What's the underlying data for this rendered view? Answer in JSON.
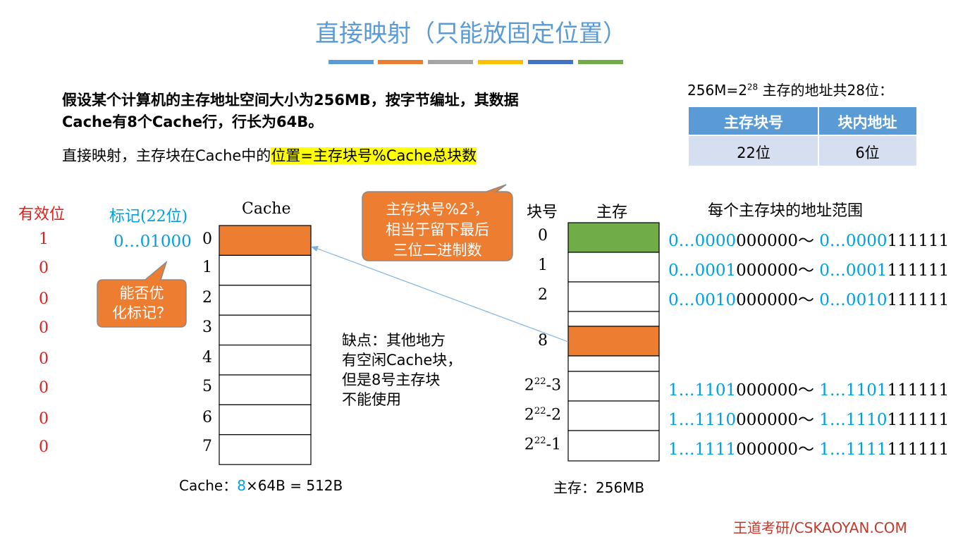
{
  "title": "直接映射（只能放固定位置）",
  "intro": {
    "before": "假设某个计算机的主存地址空间大小为256MB，按",
    "bold": "字节",
    "after": "编址，其数据Cache有8个Cache行，行长为64B。"
  },
  "rule": {
    "text": "直接映射，主存块在Cache中的",
    "highlight": "位置=主存块号%Cache总块数"
  },
  "address_note": {
    "base": "256M=2",
    "exp": "28",
    "after": " 主存的地址共28位："
  },
  "table": {
    "header": [
      "主存块号",
      "块内地址"
    ],
    "rows": [
      [
        "22位",
        "6位"
      ]
    ]
  },
  "labels": {
    "valid": "有效位",
    "tag": "标记(22位)",
    "cache": "Cache",
    "block_no": "块号",
    "memory": "主存",
    "range": "每个主存块的地址范围"
  },
  "valid_bits": [
    1,
    0,
    0,
    0,
    0,
    0,
    0,
    0
  ],
  "tag_value": "0…01000",
  "cache_rows": [
    0,
    1,
    2,
    3,
    4,
    5,
    6,
    7
  ],
  "tag_callout": [
    "能否优",
    "化标记？"
  ],
  "mod_callout": {
    "line1": {
      "base": "主存块号%2",
      "exp": "3",
      "after": "，"
    },
    "line2": "相当于留下最后",
    "line3": "三位二进制数"
  },
  "drawback": [
    "缺点：其他地方",
    "有空闲Cache块，",
    "但是8号主存块",
    "不能使用"
  ],
  "memory_blocks": [
    {
      "label": {
        "base": "0"
      },
      "range": {
        "start_high": "0…0000",
        "start_low": "000000",
        "sep": "～ ",
        "end_high": "0…0000",
        "end_low": "111111"
      }
    },
    {
      "label": {
        "base": "1"
      },
      "range": {
        "start_high": "0…0001",
        "start_low": "000000",
        "sep": "～ ",
        "end_high": "0…0001",
        "end_low": "111111"
      }
    },
    {
      "label": {
        "base": "2"
      },
      "range": {
        "start_high": "0…0010",
        "start_low": "000000",
        "sep": "～ ",
        "end_high": "0…0010",
        "end_low": "111111"
      }
    },
    {
      "label": {
        "base": "8"
      }
    },
    {
      "label": {
        "base": "2",
        "exp": "22",
        "after": "-3"
      },
      "range": {
        "start_high": "1…1101",
        "start_low": "000000",
        "sep": "～ ",
        "end_high": "1…1101",
        "end_low": "111111"
      }
    },
    {
      "label": {
        "base": "2",
        "exp": "22",
        "after": "-2"
      },
      "range": {
        "start_high": "1…1110",
        "start_low": "000000",
        "sep": "～ ",
        "end_high": "1…1110",
        "end_low": "111111"
      }
    },
    {
      "label": {
        "base": "2",
        "exp": "22",
        "after": "-1"
      },
      "range": {
        "start_high": "1…1111",
        "start_low": "000000",
        "sep": "～ ",
        "end_high": "1…1111",
        "end_low": "111111"
      }
    }
  ],
  "cache_caption": {
    "before": "Cache：",
    "count": "8",
    "after": "×64B = 512B"
  },
  "memory_caption": "主存：256MB",
  "footer": "王道考研/CSKAOYAN.COM"
}
